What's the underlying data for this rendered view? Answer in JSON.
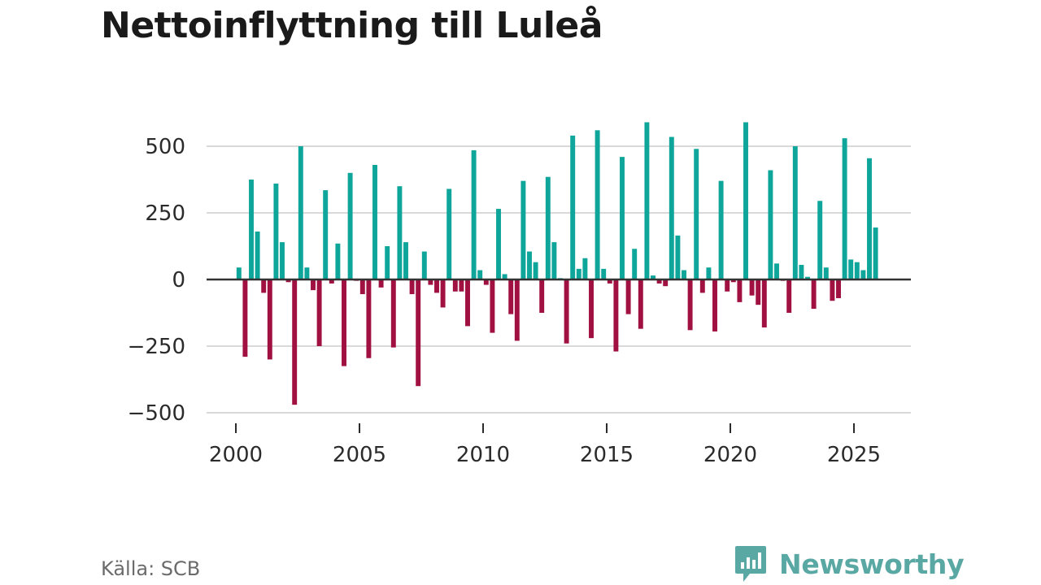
{
  "title": "Nettoinflyttning till Luleå",
  "source": "Källa: SCB",
  "brand": {
    "name": "Newsworthy",
    "icon": "newsworthy-logo-icon"
  },
  "colors": {
    "positive": "#0ea59a",
    "negative": "#a01040",
    "zero_line": "#333333",
    "grid": "#d9d9d9",
    "brand": "#5aa8a4"
  },
  "chart_data": {
    "type": "bar",
    "title": "Nettoinflyttning till Luleå",
    "xlabel": "",
    "ylabel": "",
    "frequency": "quarterly",
    "x_start": 2000.0,
    "xlim": [
      1999.25,
      2027.0
    ],
    "ylim": [
      -530,
      620
    ],
    "y_ticks": [
      -500,
      -250,
      0,
      250,
      500
    ],
    "y_tick_labels": [
      "−500",
      "−250",
      "0",
      "250",
      "500"
    ],
    "x_ticks": [
      2000,
      2005,
      2010,
      2015,
      2020,
      2025
    ],
    "x_tick_labels": [
      "2000",
      "2005",
      "2010",
      "2015",
      "2020",
      "2025"
    ],
    "grid": true,
    "values": [
      45,
      -290,
      375,
      180,
      -50,
      -300,
      360,
      140,
      -10,
      -470,
      500,
      45,
      -40,
      -250,
      335,
      -15,
      135,
      -325,
      400,
      -5,
      -55,
      -295,
      430,
      -30,
      125,
      -255,
      350,
      140,
      -55,
      -400,
      105,
      -20,
      -50,
      -105,
      340,
      -45,
      -45,
      -175,
      485,
      35,
      -20,
      -200,
      265,
      20,
      -130,
      -230,
      370,
      105,
      65,
      -125,
      385,
      140,
      5,
      -240,
      540,
      40,
      80,
      -220,
      560,
      40,
      -15,
      -270,
      460,
      -130,
      115,
      -185,
      590,
      15,
      -15,
      -25,
      535,
      165,
      35,
      -190,
      490,
      -50,
      45,
      -195,
      370,
      -45,
      -10,
      -85,
      590,
      -60,
      -95,
      -180,
      410,
      60,
      -5,
      -125,
      500,
      55,
      10,
      -110,
      295,
      45,
      -80,
      -70,
      530,
      75,
      65,
      35,
      455,
      195
    ]
  }
}
